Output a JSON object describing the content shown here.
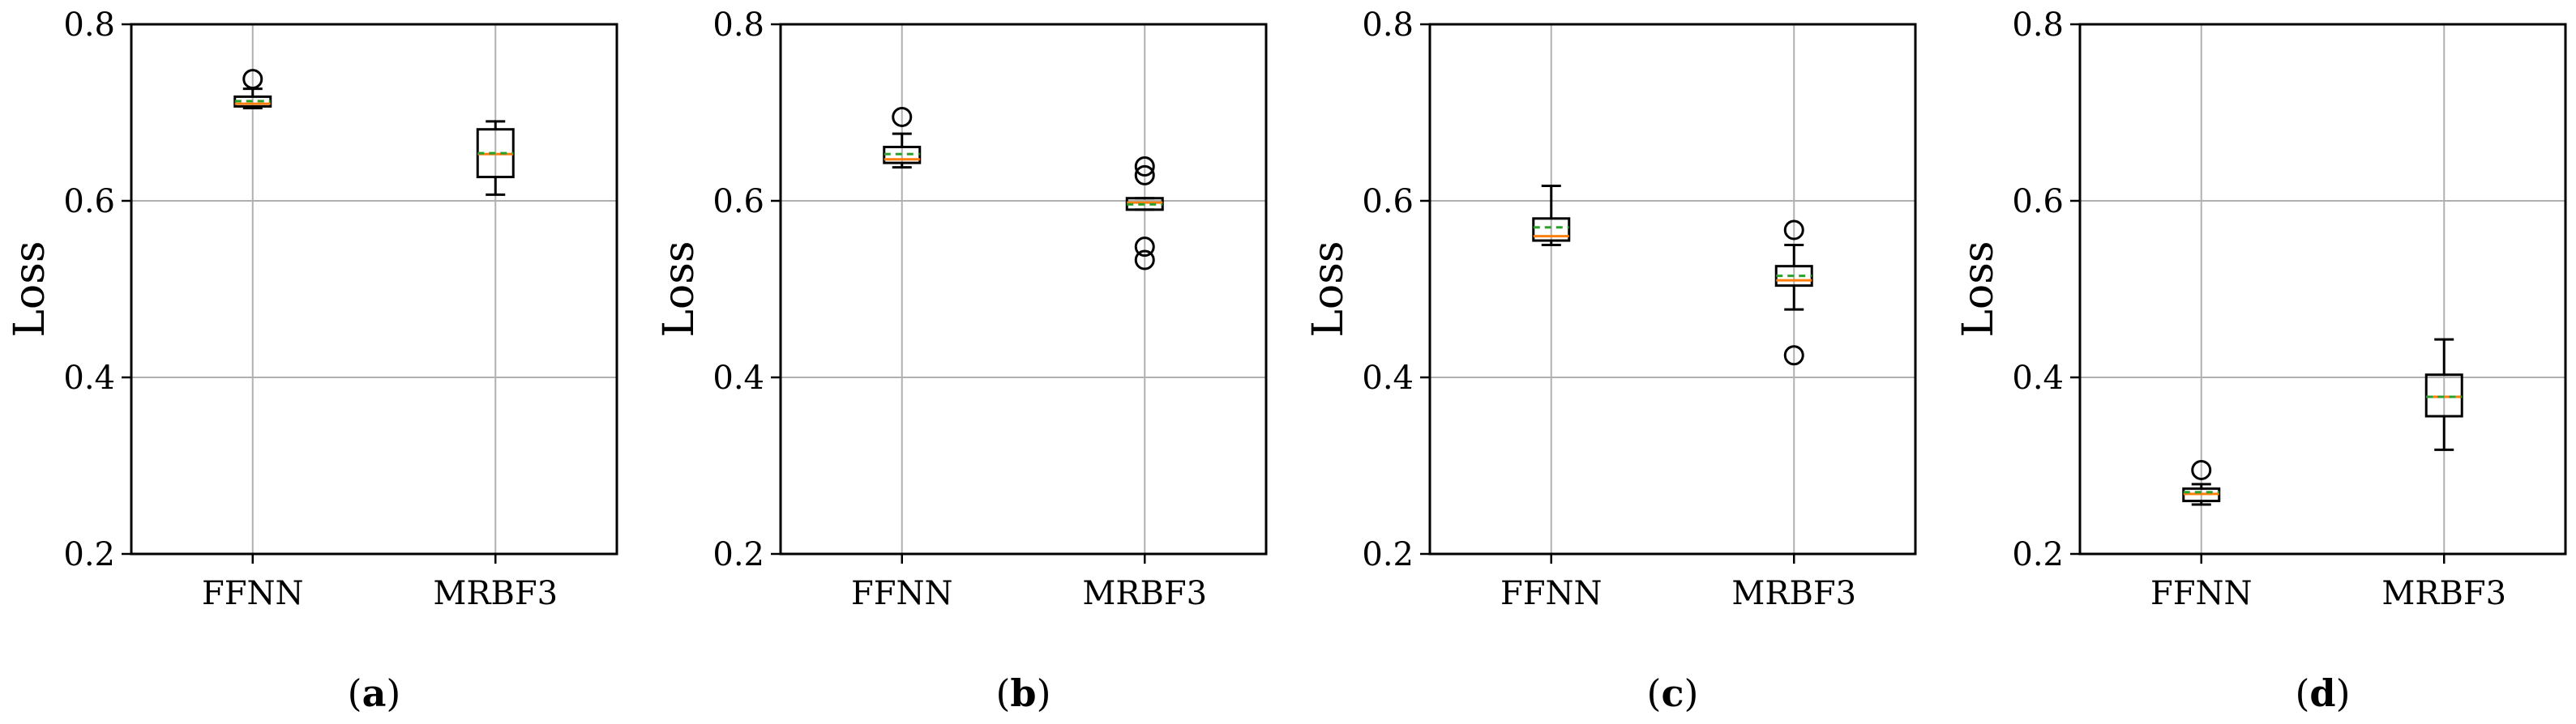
{
  "chart_data": [
    {
      "type": "boxplot",
      "caption": "a",
      "ylabel": "Loss",
      "ylim": [
        0.2,
        0.8
      ],
      "yticks": [
        "0.2",
        "0.4",
        "0.6",
        "0.8"
      ],
      "categories": [
        "FFNN",
        "MRBF3"
      ],
      "grid": true,
      "boxes": [
        {
          "category": "FFNN",
          "whislo": 0.705,
          "q1": 0.707,
          "median": 0.71,
          "mean": 0.713,
          "q3": 0.718,
          "whishi": 0.727,
          "fliers": [
            0.738
          ]
        },
        {
          "category": "MRBF3",
          "whislo": 0.607,
          "q1": 0.627,
          "median": 0.653,
          "mean": 0.654,
          "q3": 0.681,
          "whishi": 0.69,
          "fliers": []
        }
      ]
    },
    {
      "type": "boxplot",
      "caption": "b",
      "ylabel": "Loss",
      "ylim": [
        0.2,
        0.8
      ],
      "yticks": [
        "0.2",
        "0.4",
        "0.6",
        "0.8"
      ],
      "categories": [
        "FFNN",
        "MRBF3"
      ],
      "grid": true,
      "boxes": [
        {
          "category": "FFNN",
          "whislo": 0.638,
          "q1": 0.643,
          "median": 0.647,
          "mean": 0.653,
          "q3": 0.661,
          "whishi": 0.676,
          "fliers": [
            0.695
          ]
        },
        {
          "category": "MRBF3",
          "whislo": 0.59,
          "q1": 0.59,
          "median": 0.598,
          "mean": 0.596,
          "q3": 0.603,
          "whishi": 0.603,
          "fliers": [
            0.639,
            0.629,
            0.548,
            0.533
          ]
        }
      ]
    },
    {
      "type": "boxplot",
      "caption": "c",
      "ylabel": "Loss",
      "ylim": [
        0.2,
        0.8
      ],
      "yticks": [
        "0.2",
        "0.4",
        "0.6",
        "0.8"
      ],
      "categories": [
        "FFNN",
        "MRBF3"
      ],
      "grid": true,
      "boxes": [
        {
          "category": "FFNN",
          "whislo": 0.55,
          "q1": 0.555,
          "median": 0.56,
          "mean": 0.57,
          "q3": 0.58,
          "whishi": 0.617,
          "fliers": []
        },
        {
          "category": "MRBF3",
          "whislo": 0.477,
          "q1": 0.504,
          "median": 0.51,
          "mean": 0.515,
          "q3": 0.526,
          "whishi": 0.55,
          "fliers": [
            0.567,
            0.425
          ]
        }
      ]
    },
    {
      "type": "boxplot",
      "caption": "d",
      "ylabel": "Loss",
      "ylim": [
        0.2,
        0.8
      ],
      "yticks": [
        "0.2",
        "0.4",
        "0.6",
        "0.8"
      ],
      "categories": [
        "FFNN",
        "MRBF3"
      ],
      "grid": true,
      "boxes": [
        {
          "category": "FFNN",
          "whislo": 0.256,
          "q1": 0.26,
          "median": 0.268,
          "mean": 0.27,
          "q3": 0.274,
          "whishi": 0.279,
          "fliers": [
            0.295
          ]
        },
        {
          "category": "MRBF3",
          "whislo": 0.318,
          "q1": 0.356,
          "median": 0.378,
          "mean": 0.378,
          "q3": 0.403,
          "whishi": 0.443,
          "fliers": []
        }
      ]
    }
  ],
  "legend": {
    "median_color": "#ff7f0e",
    "mean_color": "#2ca02c",
    "box_color": "#000000",
    "grid_color": "#b0b0b0"
  }
}
